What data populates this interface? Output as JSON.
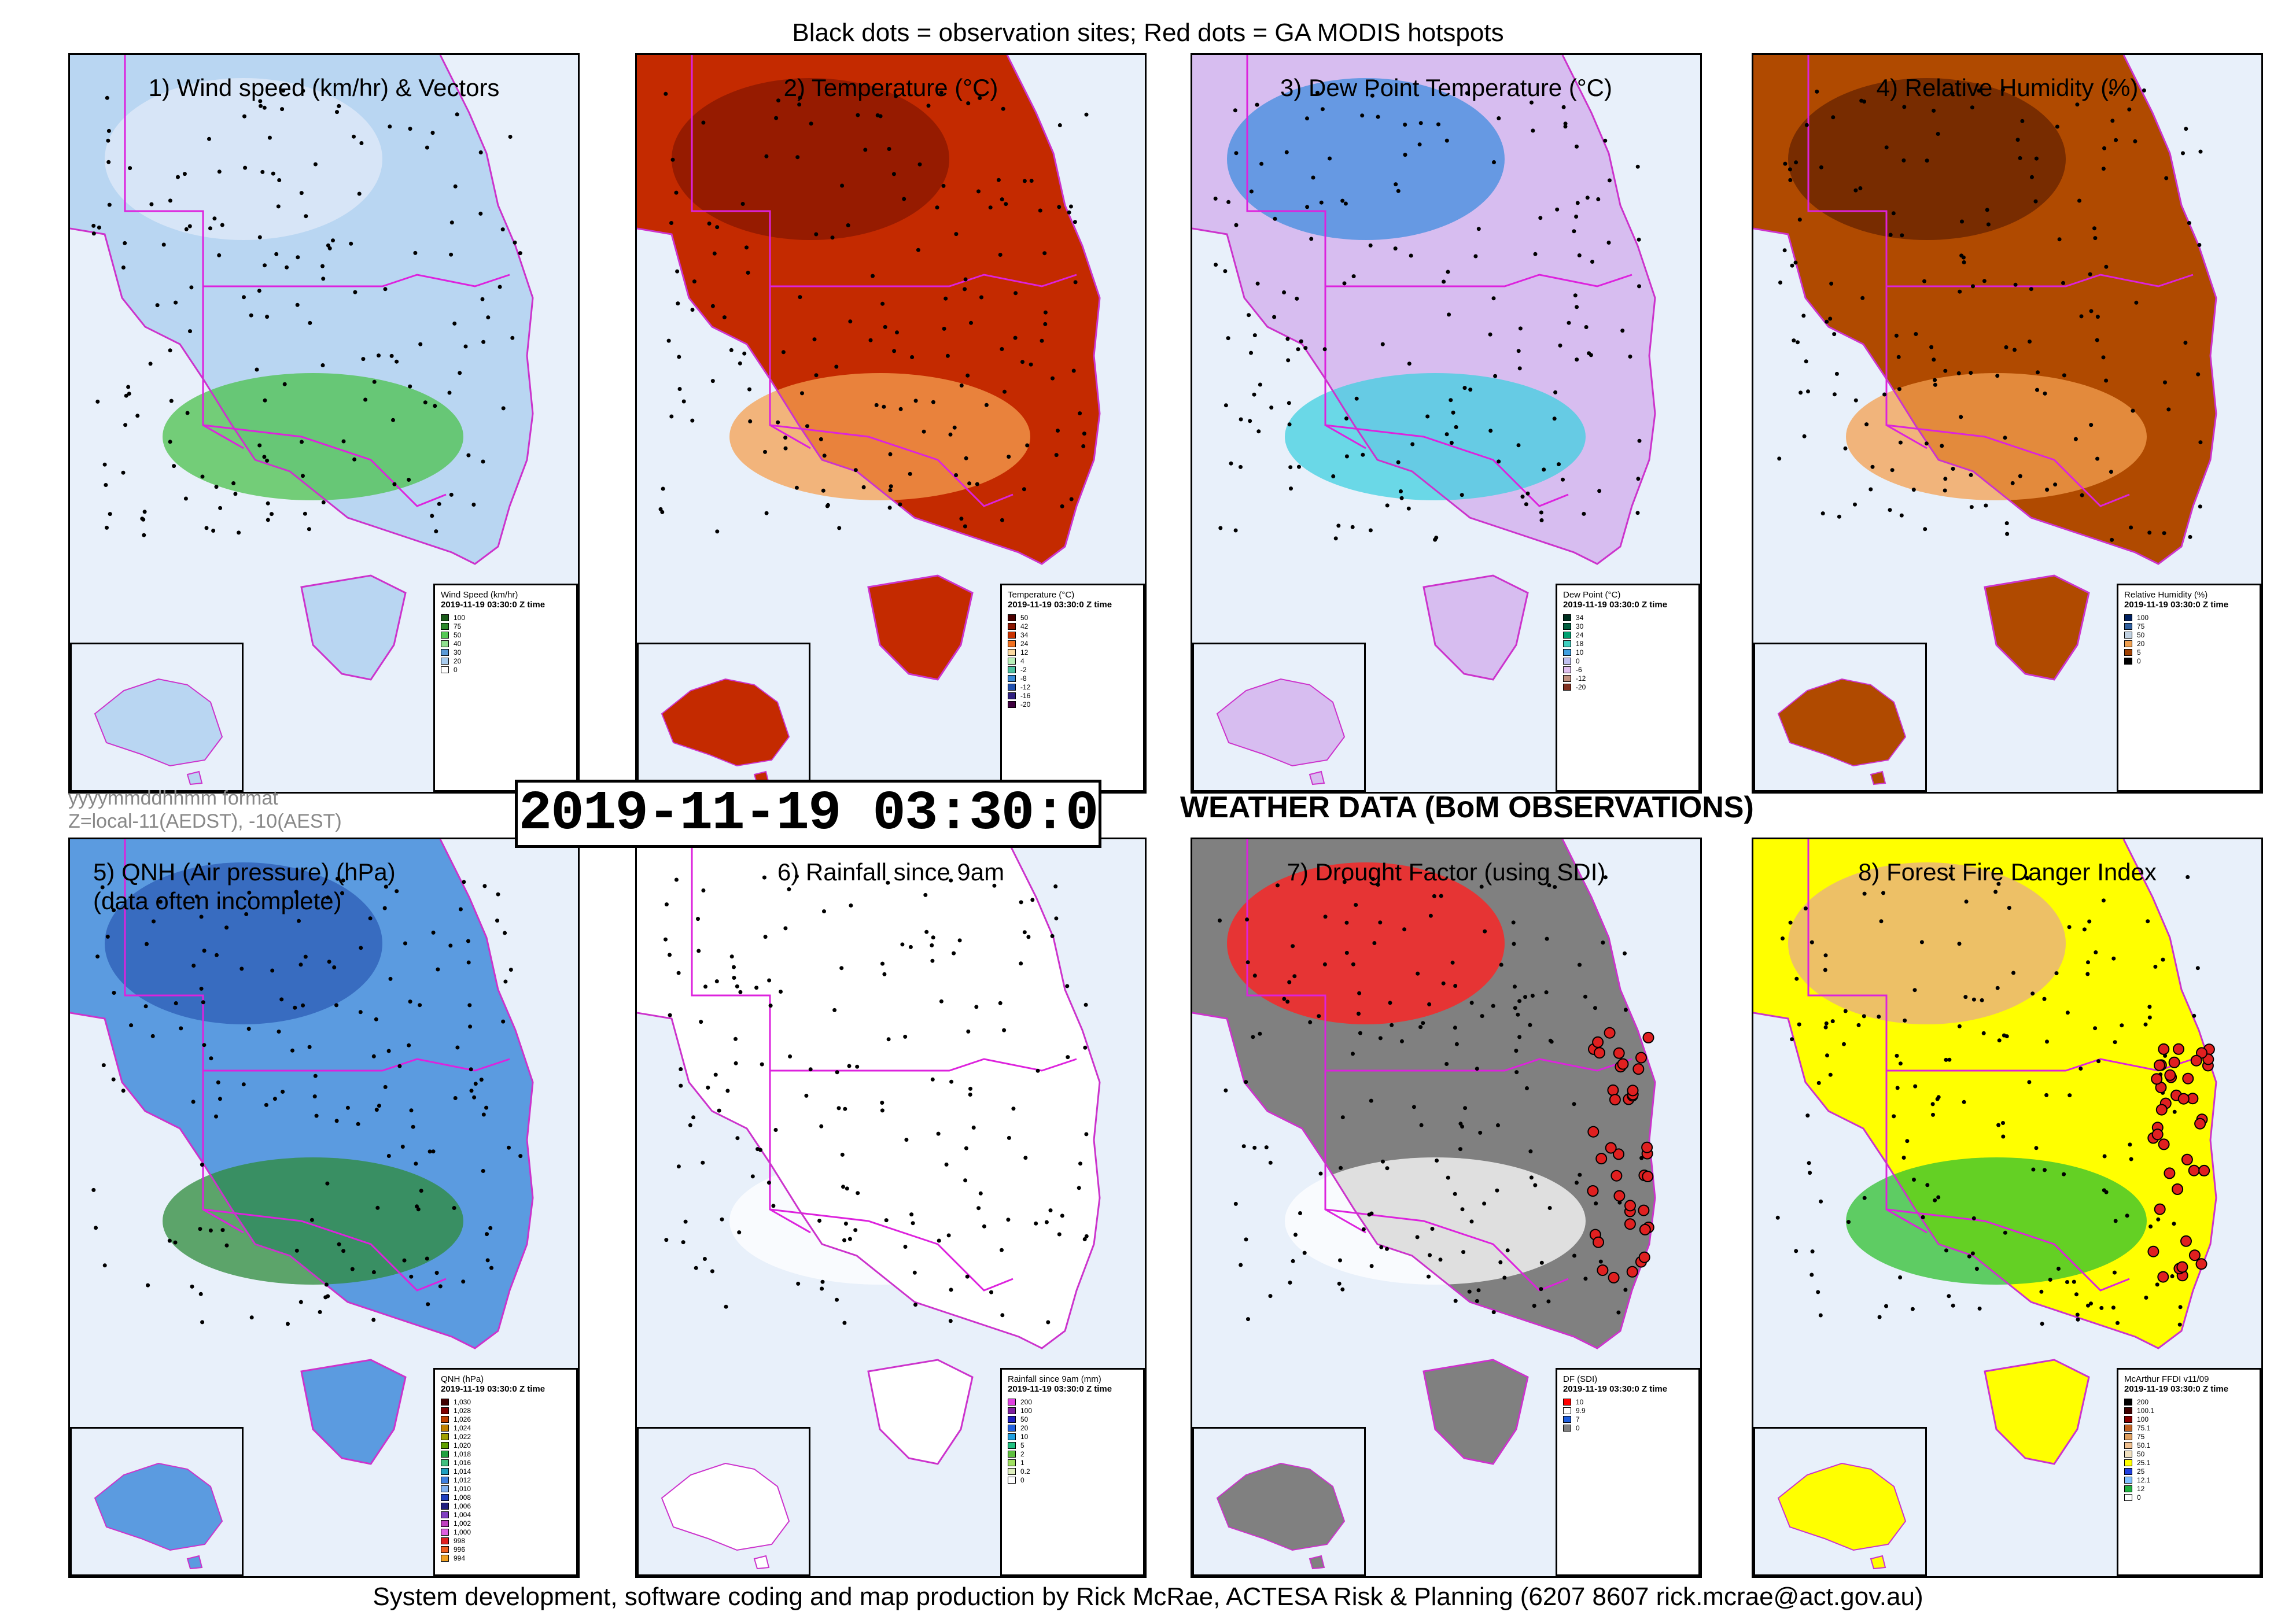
{
  "header": {
    "caption": "Black dots = observation sites; Red dots = GA MODIS hotspots"
  },
  "timestamp": "2019-11-19 03:30:0",
  "format_note": {
    "line1": "yyyymmddhhmm format",
    "line2": "Z=local-11(AEDST), -10(AEST)"
  },
  "section_heading": "WEATHER DATA (BoM OBSERVATIONS)",
  "footer": "System development, software coding and map production by Rick McRae, ACTESA Risk & Planning (6207 8607 rick.mcrae@act.gov.au)",
  "panels": [
    {
      "title": "1) Wind speed (km/hr) & Vectors",
      "legend": {
        "title": "Wind Speed (km/hr)",
        "date": "2019-11-19 03:30:0 Z time",
        "items": [
          {
            "label": "100",
            "color": "#1a5c1a"
          },
          {
            "label": "75",
            "color": "#2e8b2e"
          },
          {
            "label": "50",
            "color": "#55c855"
          },
          {
            "label": "40",
            "color": "#8fe08f"
          },
          {
            "label": "30",
            "color": "#5b9bd8"
          },
          {
            "label": "20",
            "color": "#a9cdf0"
          },
          {
            "label": "0",
            "color": "#ffffff"
          }
        ]
      },
      "colors": {
        "bg": "#b9d6f2",
        "blob1": "#dfe9f7",
        "blob2": "#4cc24c"
      }
    },
    {
      "title": "2) Temperature (°C)",
      "legend": {
        "title": "Temperature (°C)",
        "date": "2019-11-19 03:30:0 Z time",
        "items": [
          {
            "label": "50",
            "color": "#4a0000"
          },
          {
            "label": "42",
            "color": "#8b1500"
          },
          {
            "label": "34",
            "color": "#c83200"
          },
          {
            "label": "24",
            "color": "#f07020"
          },
          {
            "label": "12",
            "color": "#fcd9a0"
          },
          {
            "label": "4",
            "color": "#b9f0b9"
          },
          {
            "label": "-2",
            "color": "#4cc2a0"
          },
          {
            "label": "-8",
            "color": "#3a8ad8"
          },
          {
            "label": "-12",
            "color": "#2050b0"
          },
          {
            "label": "-16",
            "color": "#302080"
          },
          {
            "label": "-20",
            "color": "#400040"
          }
        ]
      },
      "colors": {
        "bg": "#c42a00",
        "blob1": "#8b1800",
        "blob2": "#f5a050"
      }
    },
    {
      "title": "3) Dew Point Temperature (°C)",
      "legend": {
        "title": "Dew Point (°C)",
        "date": "2019-11-19 03:30:0 Z time",
        "items": [
          {
            "label": "34",
            "color": "#003020"
          },
          {
            "label": "30",
            "color": "#006040"
          },
          {
            "label": "24",
            "color": "#00a070"
          },
          {
            "label": "18",
            "color": "#40d0c0"
          },
          {
            "label": "10",
            "color": "#40a0e0"
          },
          {
            "label": "0",
            "color": "#c0c0f0"
          },
          {
            "label": "-6",
            "color": "#e0c0f0"
          },
          {
            "label": "-12",
            "color": "#c09080"
          },
          {
            "label": "-20",
            "color": "#803020"
          }
        ]
      },
      "colors": {
        "bg": "#d7bdf0",
        "blob1": "#4a90e0",
        "blob2": "#40d0e0"
      }
    },
    {
      "title": "4) Relative Humidity (%)",
      "legend": {
        "title": "Relative Humidity (%)",
        "date": "2019-11-19 03:30:0 Z time",
        "items": [
          {
            "label": "100",
            "color": "#002060"
          },
          {
            "label": "75",
            "color": "#3060a0"
          },
          {
            "label": "50",
            "color": "#c0d0e0"
          },
          {
            "label": "20",
            "color": "#f0a050"
          },
          {
            "label": "5",
            "color": "#a04000"
          },
          {
            "label": "0",
            "color": "#000000"
          }
        ]
      },
      "colors": {
        "bg": "#b04a00",
        "blob1": "#6a2400",
        "blob2": "#f4a050"
      }
    },
    {
      "title": "5) QNH (Air pressure) (hPa)\n(data often incomplete)",
      "legend": {
        "title": "QNH (hPa)",
        "date": "2019-11-19 03:30:0 Z time",
        "items": [
          {
            "label": "1,030",
            "color": "#400000"
          },
          {
            "label": "1,028",
            "color": "#800000"
          },
          {
            "label": "1,026",
            "color": "#c04000"
          },
          {
            "label": "1,024",
            "color": "#c08000"
          },
          {
            "label": "1,022",
            "color": "#a0a000"
          },
          {
            "label": "1,020",
            "color": "#60a000"
          },
          {
            "label": "1,018",
            "color": "#20a040"
          },
          {
            "label": "1,016",
            "color": "#40c080"
          },
          {
            "label": "1,014",
            "color": "#20a0c0"
          },
          {
            "label": "1,012",
            "color": "#4080e0"
          },
          {
            "label": "1,010",
            "color": "#80b0f0"
          },
          {
            "label": "1,008",
            "color": "#2040c0"
          },
          {
            "label": "1,006",
            "color": "#202080"
          },
          {
            "label": "1,004",
            "color": "#8040c0"
          },
          {
            "label": "1,002",
            "color": "#c040c0"
          },
          {
            "label": "1,000",
            "color": "#e060e0"
          },
          {
            "label": "998",
            "color": "#e02020"
          },
          {
            "label": "996",
            "color": "#f06020"
          },
          {
            "label": "994",
            "color": "#f0a020"
          }
        ]
      },
      "colors": {
        "bg": "#5b9be0",
        "blob1": "#3060b8",
        "blob2": "#2e8b3a"
      }
    },
    {
      "title": "6) Rainfall since 9am",
      "legend": {
        "title": "Rainfall since 9am (mm)",
        "date": "2019-11-19 03:30:0 Z time",
        "items": [
          {
            "label": "200",
            "color": "#e040e0"
          },
          {
            "label": "100",
            "color": "#8020a0"
          },
          {
            "label": "50",
            "color": "#2020c0"
          },
          {
            "label": "20",
            "color": "#2060e0"
          },
          {
            "label": "10",
            "color": "#20a0e0"
          },
          {
            "label": "5",
            "color": "#20c080"
          },
          {
            "label": "2",
            "color": "#60c040"
          },
          {
            "label": "1",
            "color": "#a0e060"
          },
          {
            "label": "0.2",
            "color": "#e0f0c0"
          },
          {
            "label": "0",
            "color": "#ffffff"
          }
        ]
      },
      "colors": {
        "bg": "#ffffff",
        "blob1": "#ffffff",
        "blob2": "#ffffff"
      }
    },
    {
      "title": "7) Drought Factor (using SDI)",
      "legend": {
        "title": "DF (SDI)",
        "date": "2019-11-19 03:30:0 Z time",
        "items": [
          {
            "label": "10",
            "color": "#ff0000"
          },
          {
            "label": "9.9",
            "color": "#ffffff"
          },
          {
            "label": "7",
            "color": "#2060e0"
          },
          {
            "label": "0",
            "color": "#808080"
          }
        ]
      },
      "colors": {
        "bg": "#808080",
        "blob1": "#ff2020",
        "blob2": "#ffffff"
      }
    },
    {
      "title": "8) Forest Fire Danger Index",
      "legend": {
        "title": "McArthur FFDI v11/09",
        "date": "2019-11-19 03:30:0 Z time",
        "items": [
          {
            "label": "200",
            "color": "#000000"
          },
          {
            "label": "100.1",
            "color": "#400000"
          },
          {
            "label": "100",
            "color": "#8b0000"
          },
          {
            "label": "75.1",
            "color": "#c06020"
          },
          {
            "label": "75",
            "color": "#e0a060"
          },
          {
            "label": "50.1",
            "color": "#f0c090"
          },
          {
            "label": "50",
            "color": "#f0e0c0"
          },
          {
            "label": "25.1",
            "color": "#ffff00"
          },
          {
            "label": "25",
            "color": "#2040e0"
          },
          {
            "label": "12.1",
            "color": "#80c0ff"
          },
          {
            "label": "12",
            "color": "#20b040"
          },
          {
            "label": "0",
            "color": "#ffffff"
          }
        ]
      },
      "colors": {
        "bg": "#ffff00",
        "blob1": "#e8b080",
        "blob2": "#30c030"
      }
    }
  ]
}
